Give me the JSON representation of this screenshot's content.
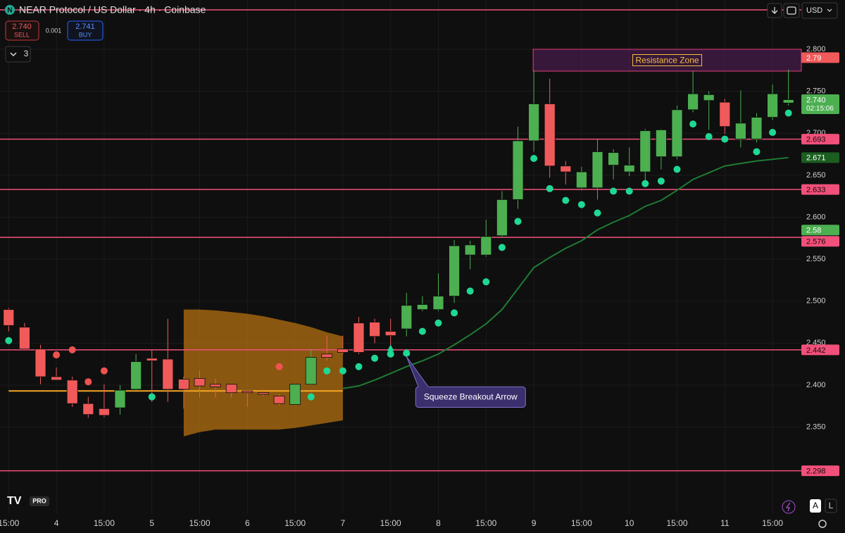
{
  "chart_data": {
    "type": "candlestick",
    "title": "NEAR Protocol / US Dollar · 4h · Coinbase",
    "header": {
      "logo": "N",
      "sell_price": "2.740",
      "sell_label": "SELL",
      "spread": "0.001",
      "buy_price": "2.741",
      "buy_label": "BUY",
      "indicators_count": "3",
      "currency": "USD",
      "badge": "PRO",
      "buttons": [
        "A",
        "L"
      ]
    },
    "categories": [
      "15:00",
      null,
      null,
      "4",
      null,
      null,
      "15:00",
      null,
      null,
      "5",
      null,
      null,
      "15:00",
      null,
      null,
      "6",
      null,
      null,
      "15:00",
      null,
      null,
      "7",
      null,
      null,
      "15:00",
      null,
      null,
      "8",
      null,
      null,
      "15:00",
      null,
      null,
      "9",
      null,
      null,
      "15:00",
      null,
      null,
      "10",
      null,
      null,
      "15:00",
      null,
      null,
      "11",
      null,
      null,
      "15:00",
      null
    ],
    "open": [
      2.49,
      2.469,
      2.443,
      2.41,
      2.406,
      2.378,
      2.372,
      2.373,
      2.395,
      2.432,
      2.431,
      2.407,
      2.408,
      2.401,
      2.401,
      2.393,
      2.391,
      2.387,
      2.377,
      2.401,
      2.437,
      2.443,
      2.474,
      2.475,
      2.464,
      2.467,
      2.49,
      2.49,
      2.506,
      2.555,
      2.555,
      2.578,
      2.621,
      2.691,
      2.735,
      2.661,
      2.635,
      2.635,
      2.662,
      2.654,
      2.654,
      2.672,
      2.672,
      2.728,
      2.739,
      2.737,
      2.693,
      2.693,
      2.719,
      2.736
    ],
    "high": [
      2.492,
      2.474,
      2.448,
      2.421,
      2.41,
      2.386,
      2.401,
      2.4,
      2.437,
      2.442,
      2.479,
      2.41,
      2.417,
      2.408,
      2.401,
      2.393,
      2.395,
      2.389,
      2.401,
      2.443,
      2.459,
      2.459,
      2.481,
      2.479,
      2.479,
      2.51,
      2.506,
      2.533,
      2.573,
      2.572,
      2.597,
      2.631,
      2.708,
      2.775,
      2.765,
      2.667,
      2.66,
      2.693,
      2.681,
      2.683,
      2.705,
      2.705,
      2.733,
      2.774,
      2.75,
      2.741,
      2.751,
      2.724,
      2.758,
      2.776
    ],
    "low": [
      2.464,
      2.442,
      2.401,
      2.406,
      2.374,
      2.361,
      2.362,
      2.365,
      2.394,
      2.38,
      2.38,
      2.372,
      2.385,
      2.385,
      2.385,
      2.374,
      2.387,
      2.376,
      2.376,
      2.4,
      2.429,
      2.437,
      2.437,
      2.45,
      2.446,
      2.458,
      2.488,
      2.488,
      2.498,
      2.538,
      2.553,
      2.576,
      2.61,
      2.678,
      2.647,
      2.639,
      2.632,
      2.621,
      2.645,
      2.649,
      2.641,
      2.657,
      2.669,
      2.725,
      2.704,
      2.699,
      2.683,
      2.689,
      2.716,
      2.733
    ],
    "close": [
      2.471,
      2.443,
      2.41,
      2.406,
      2.378,
      2.365,
      2.364,
      2.394,
      2.428,
      2.429,
      2.395,
      2.395,
      2.399,
      2.398,
      2.391,
      2.391,
      2.389,
      2.378,
      2.401,
      2.433,
      2.433,
      2.439,
      2.439,
      2.458,
      2.459,
      2.495,
      2.496,
      2.506,
      2.566,
      2.567,
      2.577,
      2.621,
      2.691,
      2.735,
      2.661,
      2.654,
      2.654,
      2.678,
      2.677,
      2.662,
      2.703,
      2.704,
      2.728,
      2.747,
      2.746,
      2.708,
      2.712,
      2.719,
      2.747,
      2.74
    ],
    "up_color": "#4caf50",
    "down_color": "#f05a5a",
    "dots_down": [
      null,
      null,
      null,
      2.436,
      2.442,
      2.404,
      2.417,
      null,
      null,
      null,
      null,
      null,
      null,
      null,
      null,
      null,
      null,
      2.422,
      null,
      null,
      null,
      null,
      null,
      null,
      null,
      null,
      null,
      null,
      null,
      null,
      null,
      null,
      null,
      null,
      null,
      null,
      null,
      null,
      null,
      null,
      null,
      null,
      null,
      null,
      null,
      null,
      null,
      null,
      null,
      null
    ],
    "dots_up": [
      2.453,
      null,
      null,
      null,
      null,
      null,
      null,
      null,
      null,
      2.386,
      null,
      null,
      null,
      null,
      null,
      null,
      null,
      null,
      null,
      2.386,
      2.417,
      2.417,
      2.422,
      2.432,
      2.437,
      2.438,
      2.464,
      2.474,
      2.486,
      2.512,
      2.523,
      2.564,
      2.595,
      2.67,
      2.634,
      2.62,
      2.615,
      2.605,
      2.631,
      2.631,
      2.64,
      2.643,
      2.657,
      2.711,
      2.696,
      2.693,
      null,
      2.678,
      2.701,
      2.724
    ],
    "dots_down_color": "#ef5350",
    "dots_up_color": "#1fd893",
    "trend_line": [
      null,
      null,
      null,
      null,
      null,
      null,
      null,
      null,
      null,
      null,
      null,
      null,
      null,
      null,
      null,
      null,
      null,
      null,
      null,
      null,
      null,
      2.396,
      2.399,
      2.406,
      2.414,
      2.422,
      2.429,
      2.437,
      2.448,
      2.46,
      2.473,
      2.49,
      2.515,
      2.54,
      2.552,
      2.563,
      2.572,
      2.585,
      2.594,
      2.602,
      2.613,
      2.62,
      2.632,
      2.645,
      2.653,
      2.661,
      2.664,
      2.667,
      2.669,
      2.671
    ],
    "trend_color": "#1e7b34",
    "basis_line": [
      2.393,
      2.393,
      2.393,
      2.393,
      2.393,
      2.393,
      2.393,
      2.393,
      2.393,
      2.393,
      2.393,
      2.393,
      2.393,
      2.393,
      2.393,
      2.393,
      2.393,
      2.393,
      2.393,
      2.393,
      2.393,
      2.393,
      null,
      null,
      null,
      null,
      null,
      null,
      null,
      null,
      null,
      null,
      null,
      null,
      null,
      null,
      null,
      null,
      null,
      null,
      null,
      null,
      null,
      null,
      null,
      null,
      null,
      null,
      null,
      null
    ],
    "basis_color": "#f5a623",
    "band_upper": [
      null,
      null,
      null,
      null,
      null,
      null,
      null,
      null,
      null,
      null,
      null,
      2.49,
      2.49,
      2.489,
      2.487,
      2.485,
      2.482,
      2.478,
      2.474,
      2.469,
      2.463,
      2.458,
      null,
      null,
      null,
      null,
      null,
      null,
      null,
      null,
      null,
      null,
      null,
      null,
      null,
      null,
      null,
      null,
      null,
      null,
      null,
      null,
      null,
      null,
      null,
      null,
      null,
      null,
      null,
      null
    ],
    "band_lower": [
      null,
      null,
      null,
      null,
      null,
      null,
      null,
      null,
      null,
      null,
      null,
      2.339,
      2.344,
      2.347,
      2.347,
      2.347,
      2.347,
      2.347,
      2.349,
      2.352,
      2.355,
      2.358,
      null,
      null,
      null,
      null,
      null,
      null,
      null,
      null,
      null,
      null,
      null,
      null,
      null,
      null,
      null,
      null,
      null,
      null,
      null,
      null,
      null,
      null,
      null,
      null,
      null,
      null,
      null,
      null
    ],
    "band_color": "#b8730f",
    "breakout_markers": [
      null,
      null,
      null,
      null,
      null,
      null,
      null,
      null,
      null,
      null,
      null,
      null,
      null,
      null,
      null,
      null,
      null,
      null,
      null,
      null,
      null,
      null,
      null,
      null,
      2.444,
      2.439,
      null,
      null,
      null,
      null,
      null,
      null,
      null,
      null,
      null,
      null,
      null,
      null,
      null,
      null,
      null,
      null,
      null,
      null,
      null,
      null,
      null,
      null,
      null,
      null
    ],
    "annotation": "Squeeze Breakout Arrow",
    "resistance_zone": {
      "label": "Resistance Zone",
      "top": 2.8,
      "bottom": 2.774,
      "start": 33
    },
    "levels": [
      2.693,
      2.633,
      2.576,
      2.442,
      2.298
    ],
    "top_line": 2.847,
    "level_color": "#f0507a",
    "tags": [
      {
        "value": 2.79,
        "color": "#f05a5a"
      },
      {
        "value": 2.74,
        "label": "2.740",
        "color": "#4caf50"
      },
      {
        "value": 2.671,
        "color": "#1b5e20"
      },
      {
        "value": 2.58,
        "color": "#4caf50"
      }
    ],
    "countdown": "02:15:06",
    "ylim": [
      2.2465,
      2.8587
    ],
    "yticks": [
      {
        "value": 2.35,
        "label": "2.350"
      },
      {
        "value": 2.4,
        "label": "2.400"
      },
      {
        "value": 2.45,
        "label": "2.450"
      },
      {
        "value": 2.5,
        "label": "2.500"
      },
      {
        "value": 2.55,
        "label": "2.550"
      },
      {
        "value": 2.6,
        "label": "2.600"
      },
      {
        "value": 2.65,
        "label": "2.650"
      },
      {
        "value": 2.7,
        "label": "2.700"
      },
      {
        "value": 2.75,
        "label": "2.750"
      },
      {
        "value": 2.8,
        "label": "2.800"
      }
    ],
    "grid": true
  }
}
